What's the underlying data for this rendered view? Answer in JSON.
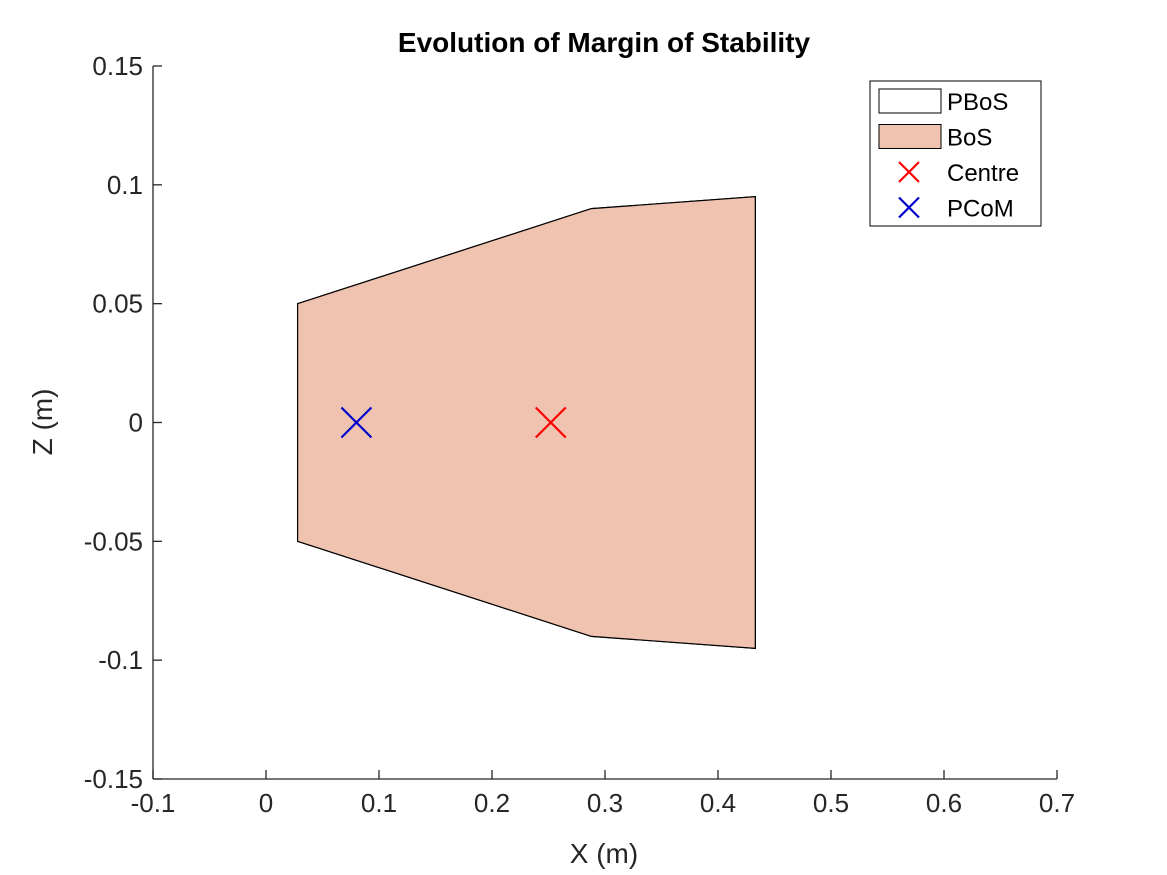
{
  "chart_data": {
    "type": "area",
    "title": "Evolution of Margin of Stability",
    "xlabel": "X (m)",
    "ylabel": "Z (m)",
    "xlim": [
      -0.1,
      0.7
    ],
    "ylim": [
      -0.15,
      0.15
    ],
    "xticks": [
      -0.1,
      0,
      0.1,
      0.2,
      0.3,
      0.4,
      0.5,
      0.6,
      0.7
    ],
    "xtick_labels": [
      "-0.1",
      "0",
      "0.1",
      "0.2",
      "0.3",
      "0.4",
      "0.5",
      "0.6",
      "0.7"
    ],
    "yticks": [
      -0.15,
      -0.1,
      -0.05,
      0,
      0.05,
      0.1,
      0.15
    ],
    "ytick_labels": [
      "-0.15",
      "-0.1",
      "-0.05",
      "0",
      "0.05",
      "0.1",
      "0.15"
    ],
    "grid": false,
    "legend_position": "top-right",
    "series": [
      {
        "name": "PBoS",
        "kind": "polygon",
        "fill": "#ffffff",
        "stroke": "#000000",
        "points": [
          [
            0.028,
            0.05
          ],
          [
            0.288,
            0.09
          ],
          [
            0.433,
            0.095
          ],
          [
            0.433,
            -0.095
          ],
          [
            0.288,
            -0.09
          ],
          [
            0.028,
            -0.05
          ]
        ]
      },
      {
        "name": "BoS",
        "kind": "polygon",
        "fill": "#f0c3b0",
        "stroke": "#000000",
        "points": [
          [
            0.028,
            0.05
          ],
          [
            0.288,
            0.09
          ],
          [
            0.433,
            0.095
          ],
          [
            0.433,
            -0.095
          ],
          [
            0.288,
            -0.09
          ],
          [
            0.028,
            -0.05
          ]
        ]
      },
      {
        "name": "Centre",
        "kind": "marker",
        "marker": "x",
        "color": "#ff0000",
        "points": [
          [
            0.252,
            0.0
          ]
        ]
      },
      {
        "name": "PCoM",
        "kind": "marker",
        "marker": "x",
        "color": "#0000cc",
        "points": [
          [
            0.08,
            0.0
          ]
        ]
      }
    ]
  }
}
